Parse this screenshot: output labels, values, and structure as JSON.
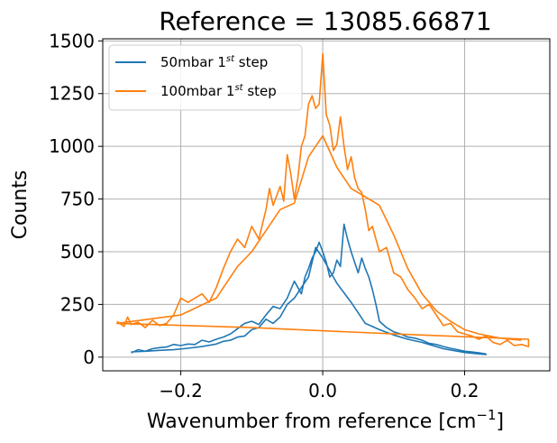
{
  "chart_data": {
    "type": "line",
    "title": "Reference = 13085.66871",
    "xlabel": "Wavenumber from reference [cm",
    "xlabel_sup": "−1",
    "xlabel_end": "]",
    "ylabel": "Counts",
    "xlim": [
      -0.31,
      0.32
    ],
    "ylim": [
      -65,
      1510
    ],
    "xticks": [
      -0.2,
      0.0,
      0.2
    ],
    "xtick_labels": [
      "−0.2",
      "0.0",
      "0.2"
    ],
    "yticks": [
      0,
      250,
      500,
      750,
      1000,
      1250,
      1500
    ],
    "ytick_labels": [
      "0",
      "250",
      "500",
      "750",
      "1000",
      "1250",
      "1500"
    ],
    "grid": true,
    "legend_position": "top-left",
    "series": [
      {
        "name_base": "50mbar 1",
        "name_sup": "st",
        "name_end": " step",
        "color": "#1f77b4",
        "points": [
          [
            -0.27,
            20
          ],
          [
            -0.26,
            35
          ],
          [
            -0.25,
            28
          ],
          [
            -0.24,
            40
          ],
          [
            -0.23,
            45
          ],
          [
            -0.22,
            48
          ],
          [
            -0.21,
            60
          ],
          [
            -0.2,
            55
          ],
          [
            -0.19,
            62
          ],
          [
            -0.18,
            60
          ],
          [
            -0.17,
            80
          ],
          [
            -0.16,
            72
          ],
          [
            -0.15,
            85
          ],
          [
            -0.14,
            95
          ],
          [
            -0.13,
            110
          ],
          [
            -0.12,
            135
          ],
          [
            -0.11,
            160
          ],
          [
            -0.1,
            170
          ],
          [
            -0.09,
            155
          ],
          [
            -0.08,
            200
          ],
          [
            -0.07,
            240
          ],
          [
            -0.06,
            230
          ],
          [
            -0.05,
            280
          ],
          [
            -0.045,
            320
          ],
          [
            -0.04,
            360
          ],
          [
            -0.03,
            300
          ],
          [
            -0.025,
            380
          ],
          [
            -0.02,
            420
          ],
          [
            -0.015,
            470
          ],
          [
            -0.01,
            500
          ],
          [
            -0.005,
            545
          ],
          [
            0.0,
            500
          ],
          [
            0.005,
            450
          ],
          [
            0.01,
            380
          ],
          [
            0.015,
            400
          ],
          [
            0.02,
            460
          ],
          [
            0.025,
            430
          ],
          [
            0.03,
            630
          ],
          [
            0.035,
            560
          ],
          [
            0.04,
            500
          ],
          [
            0.045,
            450
          ],
          [
            0.05,
            400
          ],
          [
            0.055,
            470
          ],
          [
            0.06,
            420
          ],
          [
            0.065,
            380
          ],
          [
            0.07,
            320
          ],
          [
            0.075,
            250
          ],
          [
            0.08,
            170
          ],
          [
            0.09,
            140
          ],
          [
            0.1,
            120
          ],
          [
            0.11,
            110
          ],
          [
            0.12,
            95
          ],
          [
            0.13,
            90
          ],
          [
            0.14,
            80
          ],
          [
            0.15,
            65
          ],
          [
            0.16,
            60
          ],
          [
            0.17,
            50
          ],
          [
            0.18,
            42
          ],
          [
            0.19,
            35
          ],
          [
            0.2,
            28
          ],
          [
            0.21,
            25
          ],
          [
            0.22,
            20
          ],
          [
            0.23,
            15
          ],
          [
            0.23,
            12
          ],
          [
            0.2,
            22
          ],
          [
            0.17,
            40
          ],
          [
            0.14,
            70
          ],
          [
            0.12,
            85
          ],
          [
            0.1,
            105
          ],
          [
            0.08,
            130
          ],
          [
            0.06,
            160
          ],
          [
            0.04,
            260
          ],
          [
            0.02,
            350
          ],
          [
            0.0,
            470
          ],
          [
            -0.01,
            520
          ],
          [
            -0.02,
            380
          ],
          [
            -0.03,
            330
          ],
          [
            -0.04,
            280
          ],
          [
            -0.05,
            250
          ],
          [
            -0.06,
            190
          ],
          [
            -0.07,
            160
          ],
          [
            -0.08,
            180
          ],
          [
            -0.09,
            140
          ],
          [
            -0.1,
            130
          ],
          [
            -0.11,
            100
          ],
          [
            -0.12,
            95
          ],
          [
            -0.13,
            80
          ],
          [
            -0.14,
            75
          ],
          [
            -0.15,
            62
          ],
          [
            -0.17,
            50
          ],
          [
            -0.19,
            42
          ],
          [
            -0.21,
            35
          ],
          [
            -0.23,
            32
          ],
          [
            -0.25,
            28
          ],
          [
            -0.27,
            25
          ]
        ]
      },
      {
        "name_base": "100mbar 1",
        "name_sup": "st",
        "name_end": " step",
        "color": "#ff7f0e",
        "points": [
          [
            -0.29,
            170
          ],
          [
            -0.28,
            145
          ],
          [
            -0.275,
            190
          ],
          [
            -0.27,
            155
          ],
          [
            -0.26,
            165
          ],
          [
            -0.25,
            140
          ],
          [
            -0.24,
            175
          ],
          [
            -0.23,
            150
          ],
          [
            -0.22,
            160
          ],
          [
            -0.21,
            200
          ],
          [
            -0.2,
            280
          ],
          [
            -0.19,
            260
          ],
          [
            -0.18,
            280
          ],
          [
            -0.17,
            300
          ],
          [
            -0.16,
            260
          ],
          [
            -0.15,
            330
          ],
          [
            -0.14,
            420
          ],
          [
            -0.13,
            500
          ],
          [
            -0.12,
            560
          ],
          [
            -0.11,
            520
          ],
          [
            -0.1,
            620
          ],
          [
            -0.09,
            560
          ],
          [
            -0.08,
            700
          ],
          [
            -0.075,
            800
          ],
          [
            -0.07,
            720
          ],
          [
            -0.06,
            810
          ],
          [
            -0.055,
            740
          ],
          [
            -0.05,
            960
          ],
          [
            -0.045,
            870
          ],
          [
            -0.04,
            750
          ],
          [
            -0.035,
            850
          ],
          [
            -0.03,
            1000
          ],
          [
            -0.025,
            1050
          ],
          [
            -0.02,
            1200
          ],
          [
            -0.015,
            1240
          ],
          [
            -0.01,
            1180
          ],
          [
            -0.005,
            1200
          ],
          [
            0.0,
            1440
          ],
          [
            0.005,
            1150
          ],
          [
            0.01,
            1100
          ],
          [
            0.015,
            980
          ],
          [
            0.02,
            1010
          ],
          [
            0.025,
            1140
          ],
          [
            0.03,
            1000
          ],
          [
            0.035,
            890
          ],
          [
            0.04,
            950
          ],
          [
            0.045,
            850
          ],
          [
            0.05,
            800
          ],
          [
            0.055,
            780
          ],
          [
            0.06,
            700
          ],
          [
            0.065,
            600
          ],
          [
            0.07,
            620
          ],
          [
            0.08,
            500
          ],
          [
            0.09,
            520
          ],
          [
            0.1,
            400
          ],
          [
            0.11,
            380
          ],
          [
            0.12,
            320
          ],
          [
            0.13,
            280
          ],
          [
            0.14,
            230
          ],
          [
            0.15,
            250
          ],
          [
            0.16,
            200
          ],
          [
            0.17,
            150
          ],
          [
            0.18,
            160
          ],
          [
            0.19,
            120
          ],
          [
            0.2,
            110
          ],
          [
            0.21,
            100
          ],
          [
            0.22,
            85
          ],
          [
            0.23,
            100
          ],
          [
            0.24,
            70
          ],
          [
            0.25,
            60
          ],
          [
            0.26,
            80
          ],
          [
            0.27,
            55
          ],
          [
            0.28,
            60
          ],
          [
            0.29,
            50
          ],
          [
            0.29,
            85
          ],
          [
            0.1,
            110
          ],
          [
            -0.1,
            140
          ],
          [
            -0.29,
            160
          ],
          [
            -0.2,
            200
          ],
          [
            -0.15,
            280
          ],
          [
            -0.12,
            430
          ],
          [
            -0.1,
            500
          ],
          [
            -0.08,
            600
          ],
          [
            -0.06,
            700
          ],
          [
            -0.04,
            730
          ],
          [
            -0.02,
            950
          ],
          [
            0.0,
            1050
          ],
          [
            0.02,
            900
          ],
          [
            0.04,
            800
          ],
          [
            0.06,
            760
          ],
          [
            0.08,
            720
          ],
          [
            0.1,
            580
          ],
          [
            0.12,
            420
          ],
          [
            0.14,
            300
          ],
          [
            0.16,
            220
          ],
          [
            0.18,
            170
          ],
          [
            0.2,
            130
          ],
          [
            0.22,
            110
          ],
          [
            0.25,
            90
          ],
          [
            0.28,
            80
          ]
        ]
      }
    ]
  }
}
